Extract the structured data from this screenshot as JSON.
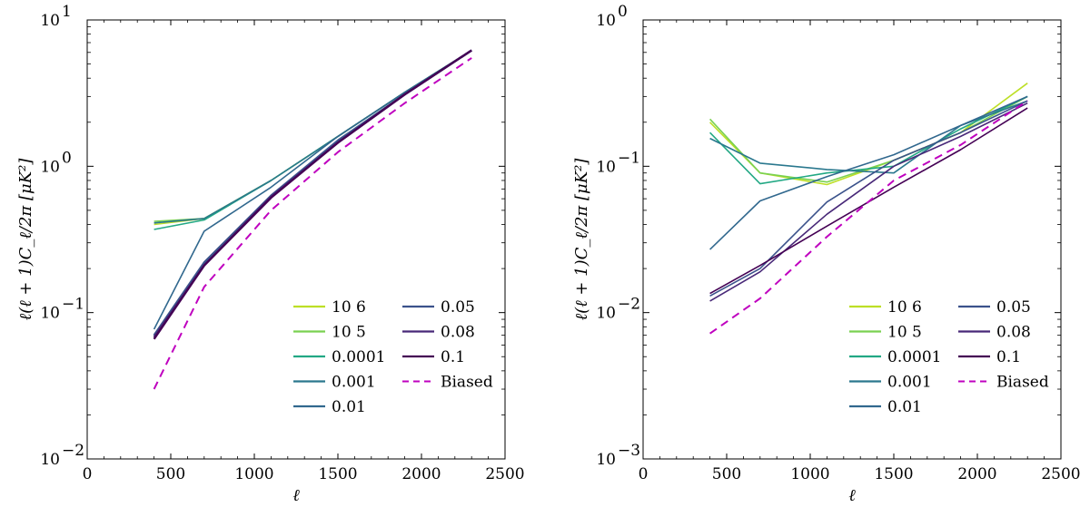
{
  "chart_data": [
    {
      "type": "line",
      "x_scale": "linear",
      "y_scale": "log",
      "xlabel": "ℓ",
      "ylabel": "ℓ(ℓ + 1)C_ℓ/2π [μK²]",
      "xlim": [
        0,
        2500
      ],
      "ylim": [
        0.01,
        10
      ],
      "xticks": [
        0,
        500,
        1000,
        1500,
        2000,
        2500
      ],
      "yticks": [
        {
          "value": 0.01,
          "base": "10",
          "exp": "−2"
        },
        {
          "value": 0.1,
          "base": "10",
          "exp": "−1"
        },
        {
          "value": 1,
          "base": "10",
          "exp": "0"
        },
        {
          "value": 10,
          "base": "10",
          "exp": "1"
        }
      ],
      "x": [
        400,
        700,
        1100,
        1500,
        1900,
        2300
      ],
      "legend_position": "lower-right",
      "series": [
        {
          "name": "10⁻⁶",
          "label": "10  6",
          "color": "#bddf26",
          "dash": false,
          "values": [
            0.4,
            0.44,
            0.8,
            1.6,
            3.2,
            6.2
          ]
        },
        {
          "name": "10⁻⁵",
          "label": "10  5",
          "color": "#7ad151",
          "dash": false,
          "values": [
            0.42,
            0.44,
            0.8,
            1.6,
            3.2,
            6.2
          ]
        },
        {
          "name": "0.0001",
          "label": "0.0001",
          "color": "#22a884",
          "dash": false,
          "values": [
            0.37,
            0.43,
            0.8,
            1.6,
            3.2,
            6.2
          ]
        },
        {
          "name": "0.001",
          "label": "0.001",
          "color": "#2a788e",
          "dash": false,
          "values": [
            0.41,
            0.44,
            0.8,
            1.6,
            3.2,
            6.2
          ]
        },
        {
          "name": "0.01",
          "label": "0.01",
          "color": "#31688e",
          "dash": false,
          "values": [
            0.077,
            0.36,
            0.72,
            1.6,
            3.2,
            6.2
          ]
        },
        {
          "name": "0.05",
          "label": "0.05",
          "color": "#3b528b",
          "dash": false,
          "values": [
            0.07,
            0.22,
            0.63,
            1.5,
            3.1,
            6.2
          ]
        },
        {
          "name": "0.08",
          "label": "0.08",
          "color": "#482878",
          "dash": false,
          "values": [
            0.068,
            0.21,
            0.62,
            1.45,
            3.1,
            6.2
          ]
        },
        {
          "name": "0.1",
          "label": "0.1",
          "color": "#440154",
          "dash": false,
          "values": [
            0.066,
            0.21,
            0.61,
            1.45,
            3.1,
            6.2
          ]
        },
        {
          "name": "Biased",
          "label": "Biased",
          "color": "#bf00bf",
          "dash": true,
          "values": [
            0.03,
            0.15,
            0.5,
            1.25,
            2.7,
            5.5
          ]
        }
      ]
    },
    {
      "type": "line",
      "x_scale": "linear",
      "y_scale": "log",
      "xlabel": "ℓ",
      "ylabel": "ℓ(ℓ + 1)C_ℓ/2π [μK²]",
      "xlim": [
        0,
        2500
      ],
      "ylim": [
        0.001,
        1
      ],
      "xticks": [
        0,
        500,
        1000,
        1500,
        2000,
        2500
      ],
      "yticks": [
        {
          "value": 0.001,
          "base": "10",
          "exp": "−3"
        },
        {
          "value": 0.01,
          "base": "10",
          "exp": "−2"
        },
        {
          "value": 0.1,
          "base": "10",
          "exp": "−1"
        },
        {
          "value": 1,
          "base": "10",
          "exp": "0"
        }
      ],
      "x": [
        400,
        700,
        1100,
        1500,
        1900,
        2300
      ],
      "legend_position": "lower-right",
      "series": [
        {
          "name": "10⁻⁶",
          "label": "10  6",
          "color": "#bddf26",
          "dash": false,
          "values": [
            0.2,
            0.09,
            0.075,
            0.11,
            0.17,
            0.37
          ]
        },
        {
          "name": "10⁻⁵",
          "label": "10  5",
          "color": "#7ad151",
          "dash": false,
          "values": [
            0.21,
            0.09,
            0.078,
            0.11,
            0.17,
            0.3
          ]
        },
        {
          "name": "0.0001",
          "label": "0.0001",
          "color": "#22a884",
          "dash": false,
          "values": [
            0.17,
            0.076,
            0.09,
            0.1,
            0.18,
            0.3
          ]
        },
        {
          "name": "0.001",
          "label": "0.001",
          "color": "#2a788e",
          "dash": false,
          "values": [
            0.155,
            0.105,
            0.095,
            0.09,
            0.19,
            0.28
          ]
        },
        {
          "name": "0.01",
          "label": "0.01",
          "color": "#31688e",
          "dash": false,
          "values": [
            0.027,
            0.058,
            0.085,
            0.12,
            0.19,
            0.3
          ]
        },
        {
          "name": "0.05",
          "label": "0.05",
          "color": "#3b528b",
          "dash": false,
          "values": [
            0.013,
            0.02,
            0.057,
            0.11,
            0.17,
            0.28
          ]
        },
        {
          "name": "0.08",
          "label": "0.08",
          "color": "#482878",
          "dash": false,
          "values": [
            0.012,
            0.019,
            0.047,
            0.1,
            0.16,
            0.27
          ]
        },
        {
          "name": "0.1",
          "label": "0.1",
          "color": "#440154",
          "dash": false,
          "values": [
            0.0135,
            0.021,
            0.039,
            0.072,
            0.13,
            0.25
          ]
        },
        {
          "name": "Biased",
          "label": "Biased",
          "color": "#bf00bf",
          "dash": true,
          "values": [
            0.0072,
            0.0125,
            0.033,
            0.08,
            0.14,
            0.28
          ]
        }
      ]
    }
  ]
}
